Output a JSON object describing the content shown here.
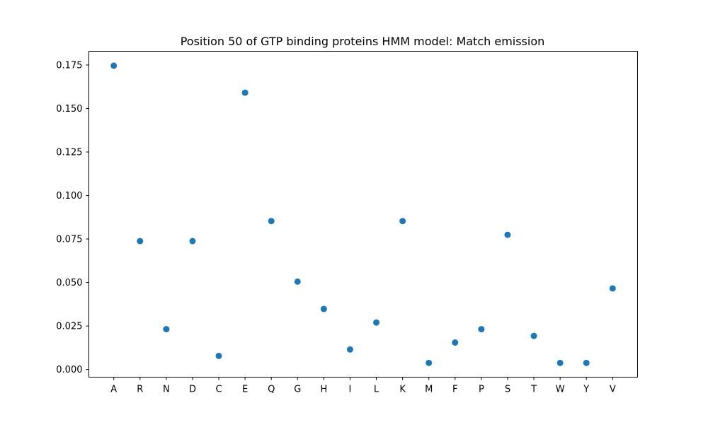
{
  "chart_data": {
    "type": "scatter",
    "title": "Position 50 of GTP binding proteins HMM model: Match emission",
    "xlabel": "",
    "ylabel": "",
    "categories": [
      "A",
      "R",
      "N",
      "D",
      "C",
      "E",
      "Q",
      "G",
      "H",
      "I",
      "L",
      "K",
      "M",
      "F",
      "P",
      "S",
      "T",
      "W",
      "Y",
      "V"
    ],
    "values": [
      0.1746,
      0.0738,
      0.0232,
      0.0738,
      0.0078,
      0.1591,
      0.0853,
      0.0505,
      0.0348,
      0.0115,
      0.027,
      0.0853,
      0.0038,
      0.0155,
      0.0232,
      0.0774,
      0.0193,
      0.0038,
      0.0038,
      0.0466
    ],
    "ylim": [
      -0.0044,
      0.1829
    ],
    "yticks": [
      0.0,
      0.025,
      0.05,
      0.075,
      0.1,
      0.125,
      0.15,
      0.175
    ],
    "ytick_labels": [
      "0.000",
      "0.025",
      "0.050",
      "0.075",
      "0.100",
      "0.125",
      "0.150",
      "0.175"
    ],
    "grid": false,
    "marker_color": "#1f77b4"
  }
}
